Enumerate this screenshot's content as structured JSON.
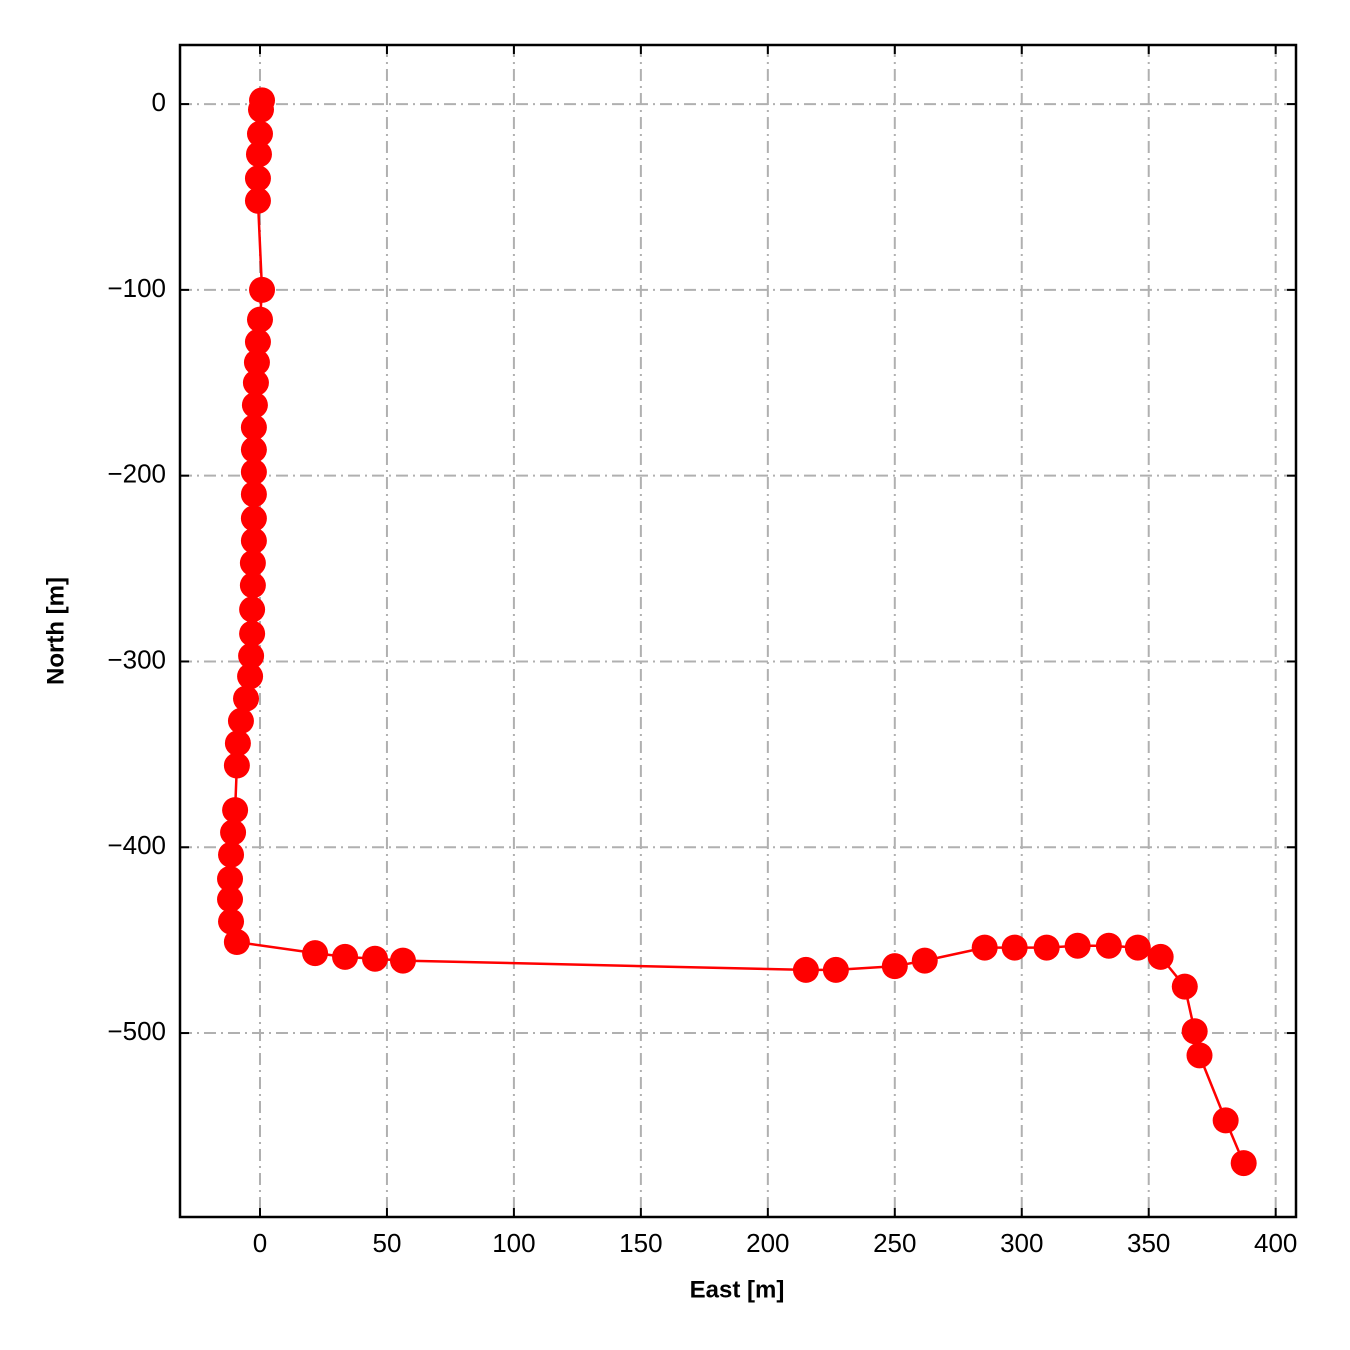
{
  "chart_data": {
    "type": "line",
    "xlabel": "East [m]",
    "ylabel": "North [m]",
    "color": "#ff0000",
    "grid": true,
    "x": [
      0.8,
      0.4,
      0,
      -0.4,
      -0.8,
      -0.8,
      0.8,
      0,
      -0.8,
      -1.2,
      -1.6,
      -2,
      -2.4,
      -2.4,
      -2.4,
      -2.4,
      -2.4,
      -2.4,
      -2.8,
      -2.8,
      -3.1,
      -3.1,
      -3.5,
      -3.9,
      -5.5,
      -7.5,
      -8.7,
      -9.1,
      -9.8,
      -10.6,
      -11.4,
      -11.8,
      -11.8,
      -11.4,
      -9.1,
      21.7,
      33.5,
      45.3,
      56.3,
      215,
      226.8,
      250,
      261.8,
      285.4,
      297.2,
      309.8,
      322,
      334.3,
      345.7,
      354.7,
      364.2,
      368.1,
      370,
      380.3,
      387.4
    ],
    "values": [
      2,
      -3,
      -16,
      -27,
      -40,
      -52,
      -100,
      -116,
      -128,
      -139,
      -150,
      -162,
      -174,
      -186,
      -198,
      -210,
      -223,
      -235,
      -247,
      -259,
      -272,
      -285,
      -297,
      -308,
      -320,
      -332,
      -344,
      -356,
      -380,
      -392,
      -404,
      -417,
      -428,
      -440,
      -451,
      -457,
      -459,
      -460,
      -461,
      -466,
      -466,
      -464,
      -461,
      -454,
      -454,
      -454,
      -453,
      -453,
      -454,
      -459,
      -475,
      -499,
      -512,
      -547,
      -570
    ],
    "xlim": [
      -31.5,
      408
    ],
    "ylim": [
      -599,
      31.8
    ],
    "xticks": [
      0,
      50,
      100,
      150,
      200,
      250,
      300,
      350,
      400
    ],
    "yticks": [
      0,
      {
        "value": -100,
        "label": "−100"
      },
      {
        "value": -200,
        "label": "−200"
      },
      {
        "value": -300,
        "label": "−300"
      },
      {
        "value": -400,
        "label": "−400"
      },
      {
        "value": -500,
        "label": "−500"
      }
    ]
  }
}
